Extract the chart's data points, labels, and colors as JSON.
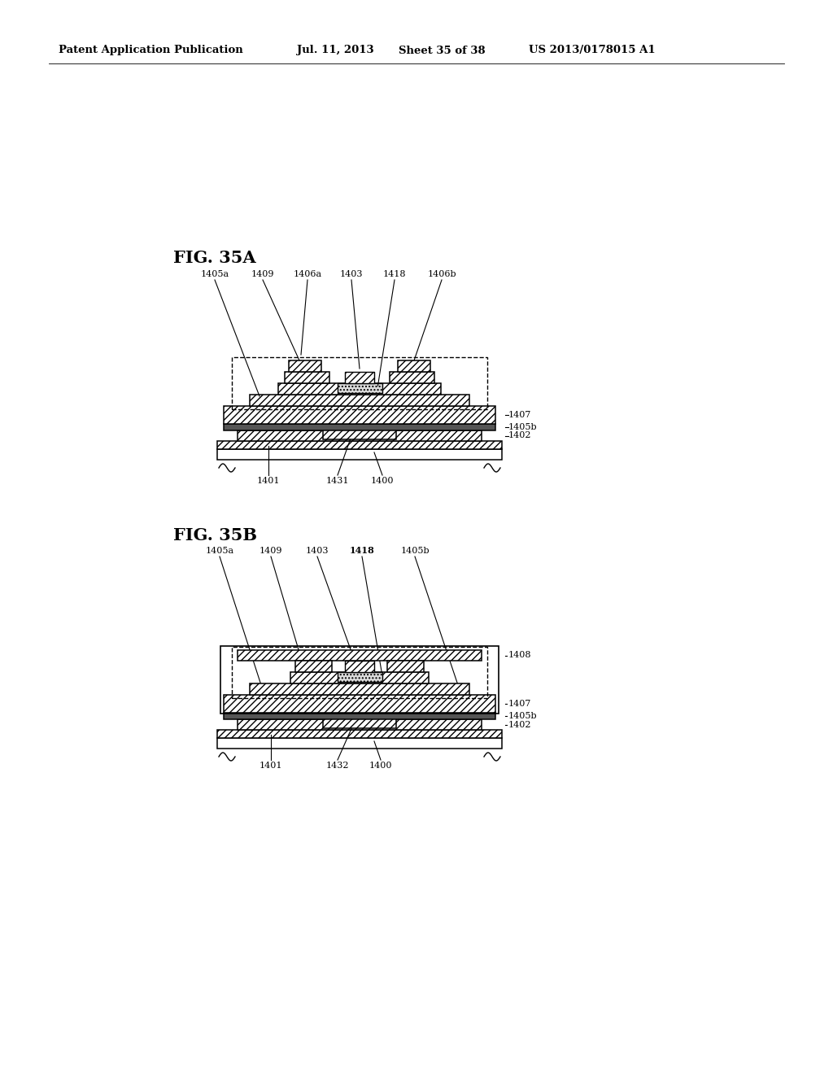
{
  "header_left": "Patent Application Publication",
  "header_mid": "Jul. 11, 2013   Sheet 35 of 38",
  "header_right": "US 2013/0178015 A1",
  "fig_a_label": "FIG. 35A",
  "fig_b_label": "FIG. 35B",
  "background": "#ffffff",
  "lc": "#000000",
  "fig_a_top_labels": [
    "1405a",
    "1409",
    "1406a",
    "1403",
    "1418",
    "1406b"
  ],
  "fig_a_right_labels": [
    "1407",
    "1405b",
    "1402"
  ],
  "fig_a_bot_labels": [
    "1401",
    "1431",
    "1400"
  ],
  "fig_b_top_labels": [
    "1405a",
    "1409",
    "1403",
    "1418",
    "1405b"
  ],
  "fig_b_right_labels": [
    "1408",
    "1407",
    "1405b",
    "1402"
  ],
  "fig_b_bot_labels": [
    "1401",
    "1432",
    "1400"
  ]
}
